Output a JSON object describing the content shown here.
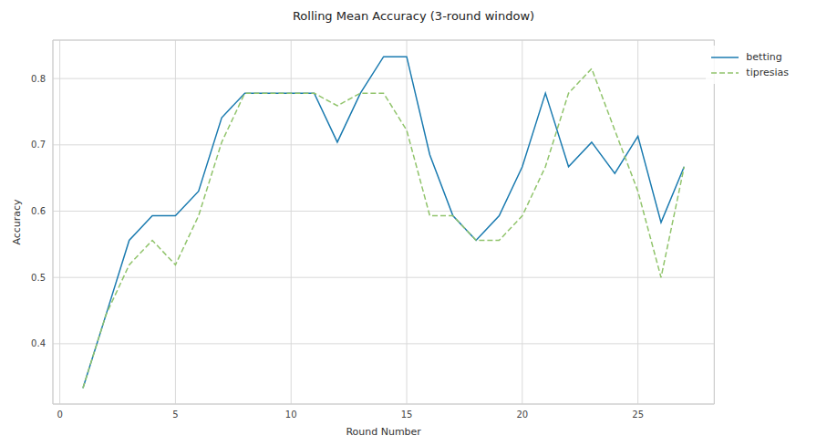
{
  "chart_data": {
    "type": "line",
    "title": "Rolling Mean Accuracy (3-round window)",
    "x_label": "Round Number",
    "y_label": "Accuracy",
    "x": [
      1,
      2,
      3,
      4,
      5,
      6,
      7,
      8,
      9,
      10,
      11,
      12,
      13,
      14,
      15,
      16,
      17,
      18,
      19,
      20,
      21,
      22,
      23,
      24,
      25,
      26,
      27
    ],
    "series": [
      {
        "name": "betting",
        "color": "#1b7bb0",
        "line_style": "solid",
        "values": [
          0.333,
          0.444,
          0.556,
          0.593,
          0.593,
          0.63,
          0.741,
          0.778,
          0.778,
          0.778,
          0.778,
          0.704,
          0.778,
          0.833,
          0.833,
          0.685,
          0.593,
          0.556,
          0.593,
          0.667,
          0.778,
          0.667,
          0.704,
          0.657,
          0.713,
          0.583,
          0.667
        ]
      },
      {
        "name": "tipresias",
        "color": "#91c46c",
        "line_style": "dashed",
        "values": [
          0.333,
          0.444,
          0.519,
          0.556,
          0.519,
          0.593,
          0.704,
          0.778,
          0.778,
          0.778,
          0.778,
          0.759,
          0.778,
          0.778,
          0.722,
          0.593,
          0.593,
          0.556,
          0.556,
          0.593,
          0.667,
          0.778,
          0.815,
          0.722,
          0.63,
          0.5,
          0.667
        ]
      }
    ],
    "xlim": [
      -0.3,
      28.3
    ],
    "ylim": [
      0.309,
      0.858
    ],
    "xticks": [
      0,
      5,
      10,
      15,
      20,
      25
    ],
    "yticks": [
      0.4,
      0.5,
      0.6,
      0.7,
      0.8
    ],
    "grid": true,
    "legend": "upper right"
  }
}
